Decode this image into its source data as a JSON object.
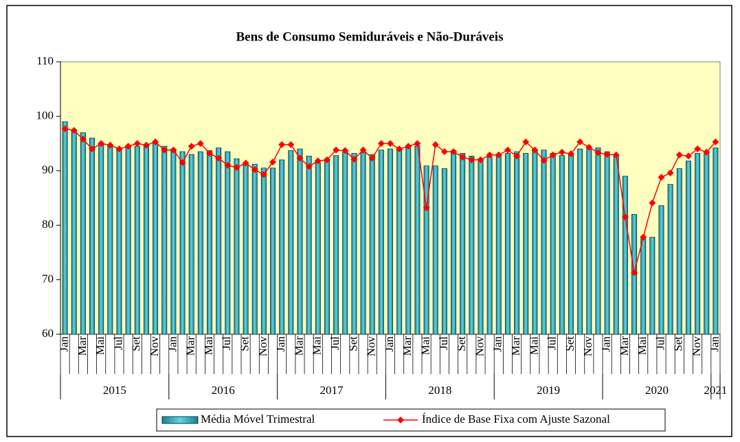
{
  "chart_data": {
    "type": "bar_line",
    "title": "Bens de Consumo Semiduráveis e Não-Duráveis",
    "categories": [
      "Jan",
      null,
      "Mar",
      null,
      "Mai",
      null,
      "Jul",
      null,
      "Set",
      null,
      "Nov",
      null,
      "Jan",
      null,
      "Mar",
      null,
      "Mai",
      null,
      "Jul",
      null,
      "Set",
      null,
      "Nov",
      null,
      "Jan",
      null,
      "Mar",
      null,
      "Mai",
      null,
      "Jul",
      null,
      "Set",
      null,
      "Nov",
      null,
      "Jan",
      null,
      "Mar",
      null,
      "Mai",
      null,
      "Jul",
      null,
      "Set",
      null,
      "Nov",
      null,
      "Jan",
      null,
      "Mar",
      null,
      "Mai",
      null,
      "Jul",
      null,
      "Set",
      null,
      "Nov",
      null,
      "Jan",
      null,
      "Mar",
      null,
      "Mai",
      null,
      "Jul",
      null,
      "Set",
      null,
      "Nov",
      null,
      "Jan"
    ],
    "years": [
      "2015",
      "2016",
      "2017",
      "2018",
      "2019",
      "2020",
      "2021"
    ],
    "series": [
      {
        "name": "Média Móvel Trimestral",
        "kind": "bar",
        "color": "#31b3c6",
        "values": [
          99,
          97.5,
          97,
          96,
          95,
          94.5,
          94,
          94.5,
          94.5,
          94.8,
          95,
          94.5,
          94,
          93.5,
          93,
          93.5,
          93.7,
          94.2,
          93.5,
          92.2,
          91.5,
          91.2,
          90.5,
          90.5,
          92,
          93.7,
          94,
          92.7,
          91.5,
          92,
          92.8,
          93.5,
          93.2,
          93.3,
          93,
          93.8,
          94,
          94,
          94.3,
          94.6,
          90.9,
          90.9,
          90.4,
          93.7,
          93.2,
          92.7,
          92.2,
          92.5,
          93,
          93.2,
          93.5,
          93.2,
          93.8,
          93.8,
          93.2,
          92.8,
          93.2,
          94,
          94,
          94.2,
          93.5,
          93,
          89,
          82,
          77.5,
          77.8,
          83.6,
          87.5,
          90.4,
          91.8,
          93.2,
          93.5,
          94.2
        ]
      },
      {
        "name": "Índice de Base Fixa com Ajuste Sazonal",
        "kind": "line",
        "color": "#ff0000",
        "values": [
          97.7,
          97.4,
          95.8,
          94,
          95,
          94.7,
          94,
          94.5,
          95,
          94.7,
          95.3,
          93.8,
          93.8,
          91.5,
          94.5,
          95,
          93.2,
          92.3,
          91,
          90.6,
          91.4,
          90.2,
          89.3,
          91.6,
          94.8,
          94.8,
          92.3,
          90.8,
          91.8,
          92,
          93.8,
          93.7,
          92.1,
          93.8,
          92.3,
          95,
          95,
          94,
          94.5,
          95,
          83.2,
          94.8,
          93.5,
          93.5,
          92.5,
          92,
          92,
          92.9,
          92.9,
          93.8,
          92.7,
          95.3,
          93.8,
          91.9,
          92.9,
          93.4,
          93.1,
          95.3,
          94.3,
          93.3,
          93,
          92.9,
          81.5,
          71.3,
          77.8,
          84.1,
          88.8,
          89.6,
          92.9,
          92.7,
          94,
          93.4,
          95.3
        ]
      }
    ],
    "ylim": [
      60,
      110
    ],
    "yticks": [
      60,
      70,
      80,
      90,
      100,
      110
    ],
    "plot_background": "#ffffc0",
    "legend": "bottom"
  }
}
